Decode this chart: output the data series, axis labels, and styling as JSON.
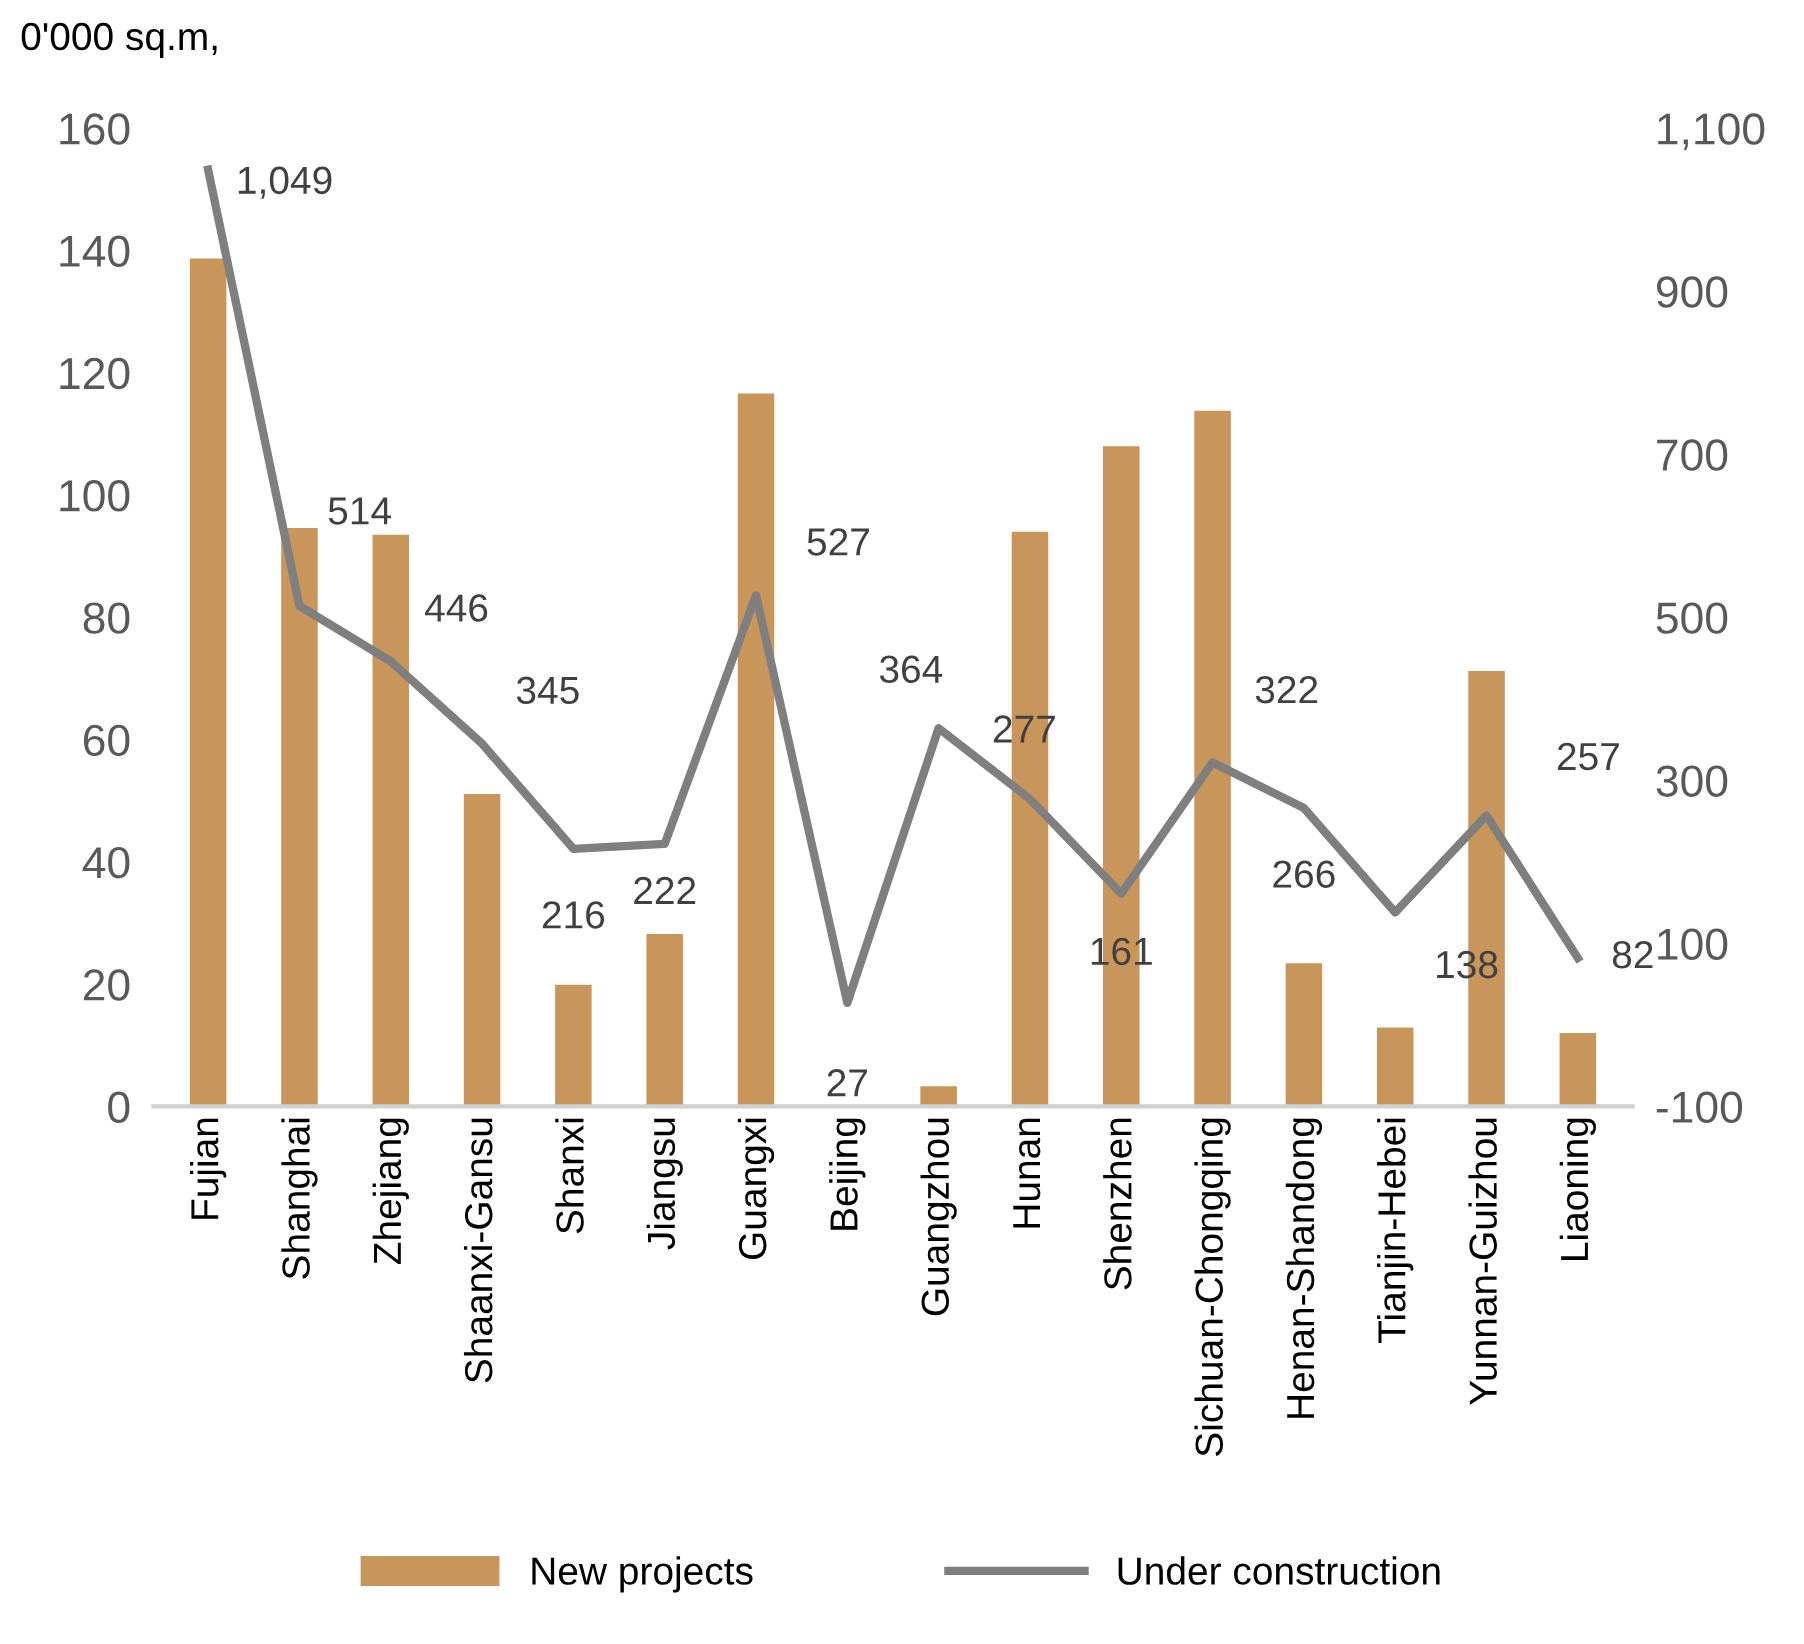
{
  "chart_data": {
    "type": "bar",
    "ylabel": "0'000 sq.m,",
    "categories": [
      "Fujian",
      "Shanghai",
      "Zhejiang",
      "Shaanxi-Gansu",
      "Shanxi",
      "Jiangsu",
      "Guangxi",
      "Beijing",
      "Guangzhou",
      "Hunan",
      "Shenzhen",
      "Sichuan-Chongqing",
      "Henan-Shandong",
      "Tianjin-Hebei",
      "Yunnan-Guizhou",
      "Liaoning"
    ],
    "series": [
      {
        "name": "New projects",
        "color": "#c8965a",
        "values": [
          138.7,
          94.6,
          93.5,
          51.1,
          19.9,
          28.2,
          116.6,
          0,
          3.3,
          94,
          108,
          113.8,
          23.4,
          12.9,
          71.2,
          12
        ]
      },
      {
        "name": "Under construction",
        "type": "line",
        "axis": "y2",
        "color": "#7f7f7f",
        "data_labels": true,
        "value_labels": [
          "1,049",
          "514",
          "446",
          "345",
          "216",
          "222",
          "527",
          "27",
          "364",
          "277",
          "161",
          "322",
          "266",
          "138",
          "257",
          "82"
        ],
        "values": [
          1049,
          514,
          446,
          345,
          216,
          222,
          527,
          27,
          364,
          277,
          161,
          322,
          266,
          138,
          257,
          82
        ]
      }
    ],
    "ylim": [
      0,
      160
    ],
    "yticks": [
      0,
      20,
      40,
      60,
      80,
      100,
      120,
      140,
      160
    ],
    "y2lim": [
      -100,
      1100
    ],
    "y2ticks": [
      {
        "value": -100,
        "label": "-100"
      },
      {
        "value": 100,
        "label": "100"
      },
      {
        "value": 300,
        "label": "300"
      },
      {
        "value": 500,
        "label": "500"
      },
      {
        "value": 700,
        "label": "700"
      },
      {
        "value": 900,
        "label": "900"
      },
      {
        "value": 1100,
        "label": "1,100"
      }
    ],
    "grid": false,
    "legend": "bottom",
    "marker": "none",
    "line_style": "solid"
  }
}
